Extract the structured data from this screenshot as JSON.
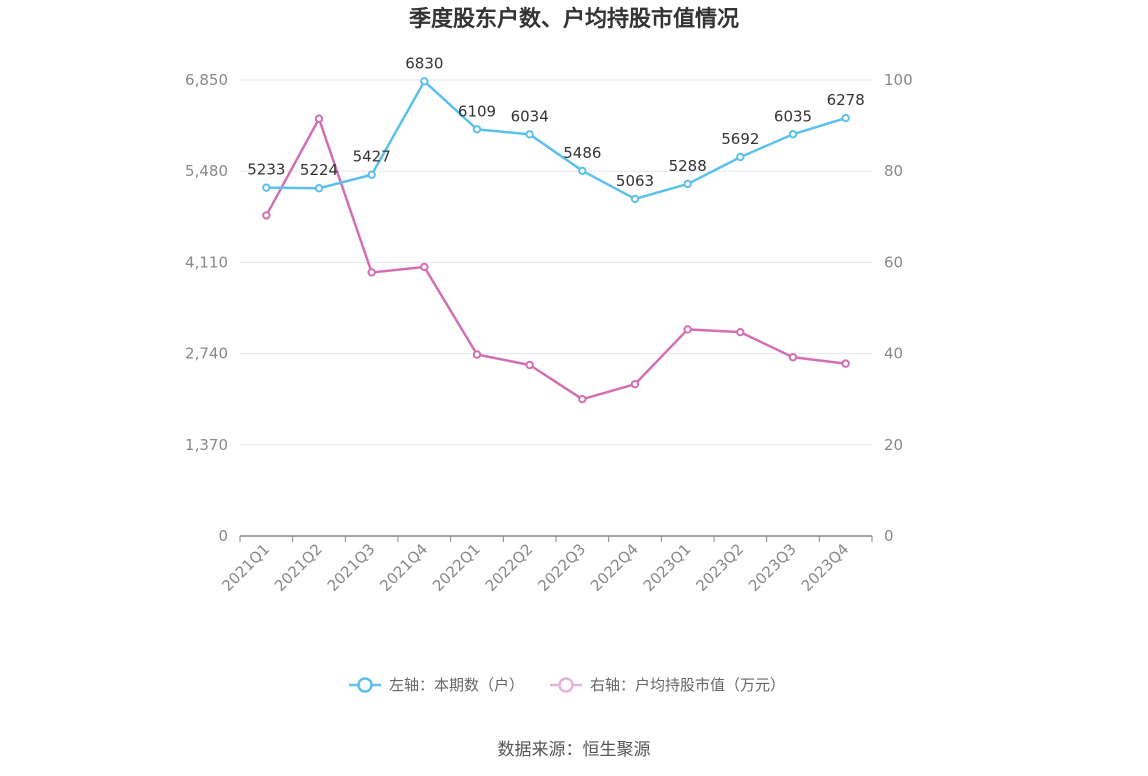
{
  "chart_data": {
    "type": "line",
    "title": "季度股东户数、户均持股市值情况",
    "categories": [
      "2021Q1",
      "2021Q2",
      "2021Q3",
      "2021Q4",
      "2022Q1",
      "2022Q2",
      "2022Q3",
      "2022Q4",
      "2023Q1",
      "2023Q2",
      "2023Q3",
      "2023Q4"
    ],
    "series": [
      {
        "name": "左轴：本期数（户）",
        "axis": "left",
        "color": "#5bc0eb",
        "values": [
          5233,
          5224,
          5427,
          6830,
          6109,
          6034,
          5486,
          5063,
          5288,
          5692,
          6035,
          6278
        ],
        "data_labels": [
          "5233",
          "5224",
          "5427",
          "6830",
          "6109",
          "6034",
          "5486",
          "5063",
          "5288",
          "5692",
          "6035",
          "6278"
        ]
      },
      {
        "name": "右轴：户均持股市值（万元）",
        "axis": "right",
        "color": "#d26fb4",
        "values": [
          70.3,
          91.5,
          57.8,
          59.0,
          39.8,
          37.5,
          30.0,
          33.3,
          45.3,
          44.7,
          39.2,
          37.8
        ]
      }
    ],
    "left_axis": {
      "ylim": [
        0,
        6850
      ],
      "ticks": [
        "0",
        "1,370",
        "2,740",
        "4,110",
        "5,480",
        "6,850"
      ]
    },
    "right_axis": {
      "ylim": [
        0,
        100
      ],
      "ticks": [
        "0",
        "20",
        "40",
        "60",
        "80",
        "100"
      ]
    },
    "grid": true,
    "legend_position": "bottom"
  },
  "source": "数据来源：恒生聚源"
}
